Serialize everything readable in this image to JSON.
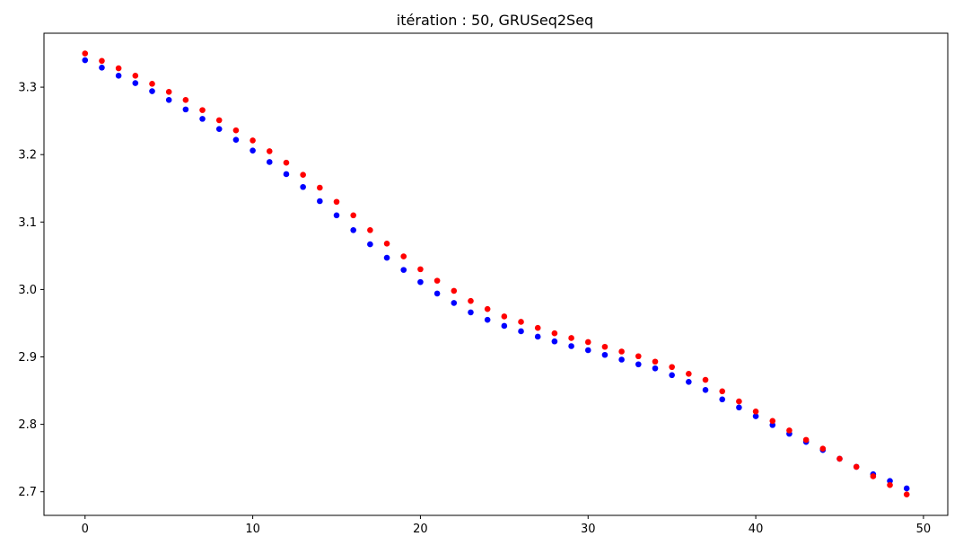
{
  "chart_data": {
    "type": "scatter",
    "title": "itération : 50, GRUSeq2Seq",
    "xlabel": "",
    "ylabel": "",
    "xlim": [
      -2.45,
      51.45
    ],
    "ylim": [
      2.665,
      3.38
    ],
    "xticks": [
      0,
      10,
      20,
      30,
      40,
      50
    ],
    "xtick_labels": [
      "0",
      "10",
      "20",
      "30",
      "40",
      "50"
    ],
    "yticks": [
      2.7,
      2.8,
      2.9,
      3.0,
      3.1,
      3.2,
      3.3
    ],
    "ytick_labels": [
      "2.7",
      "2.8",
      "2.9",
      "3.0",
      "3.1",
      "3.2",
      "3.3"
    ],
    "grid": false,
    "x": [
      0,
      1,
      2,
      3,
      4,
      5,
      6,
      7,
      8,
      9,
      10,
      11,
      12,
      13,
      14,
      15,
      16,
      17,
      18,
      19,
      20,
      21,
      22,
      23,
      24,
      25,
      26,
      27,
      28,
      29,
      30,
      31,
      32,
      33,
      34,
      35,
      36,
      37,
      38,
      39,
      40,
      41,
      42,
      43,
      44,
      45,
      46,
      47,
      48,
      49
    ],
    "series": [
      {
        "color": "#0000ff",
        "values": [
          3.34,
          3.329,
          3.317,
          3.306,
          3.294,
          3.281,
          3.267,
          3.253,
          3.238,
          3.222,
          3.206,
          3.189,
          3.171,
          3.152,
          3.131,
          3.11,
          3.088,
          3.067,
          3.047,
          3.029,
          3.011,
          2.994,
          2.98,
          2.966,
          2.955,
          2.946,
          2.938,
          2.93,
          2.923,
          2.916,
          2.91,
          2.903,
          2.896,
          2.889,
          2.883,
          2.873,
          2.863,
          2.851,
          2.837,
          2.825,
          2.812,
          2.799,
          2.786,
          2.774,
          2.762,
          2.749,
          2.737,
          2.726,
          2.716,
          2.705
        ]
      },
      {
        "color": "#ff0000",
        "values": [
          3.35,
          3.339,
          3.328,
          3.317,
          3.305,
          3.293,
          3.281,
          3.266,
          3.251,
          3.236,
          3.221,
          3.205,
          3.188,
          3.17,
          3.151,
          3.13,
          3.11,
          3.088,
          3.068,
          3.049,
          3.03,
          3.013,
          2.998,
          2.983,
          2.971,
          2.96,
          2.952,
          2.943,
          2.935,
          2.928,
          2.922,
          2.915,
          2.908,
          2.901,
          2.893,
          2.885,
          2.875,
          2.866,
          2.849,
          2.834,
          2.819,
          2.805,
          2.791,
          2.777,
          2.764,
          2.749,
          2.737,
          2.723,
          2.71,
          2.696
        ]
      }
    ]
  }
}
